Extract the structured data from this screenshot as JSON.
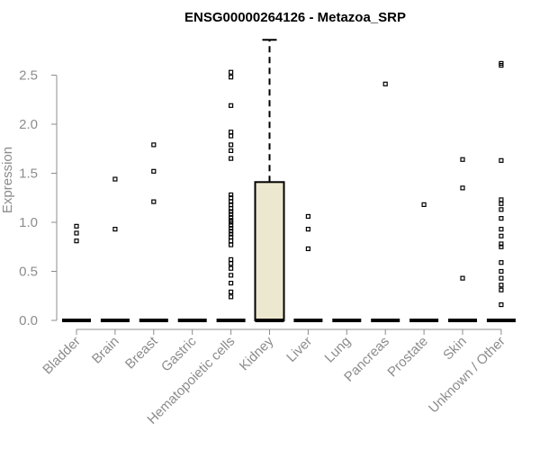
{
  "chart_data": {
    "type": "box",
    "title": "ENSG00000264126 - Metazoa_SRP",
    "xlabel": "",
    "ylabel": "Expression",
    "ylim": [
      0,
      2.9
    ],
    "yticks": [
      "0.0",
      "0.5",
      "1.0",
      "1.5",
      "2.0",
      "2.5"
    ],
    "box_fill": "#ece7cf",
    "categories": [
      "Bladder",
      "Brain",
      "Breast",
      "Gastric",
      "Hematopoietic cells",
      "Kidney",
      "Liver",
      "Lung",
      "Pancreas",
      "Prostate",
      "Skin",
      "Unknown / Other"
    ],
    "boxes": [
      {
        "category": "Bladder",
        "q1": 0,
        "median": 0,
        "q3": 0,
        "whisker_low": 0,
        "whisker_high": 0,
        "outliers": [
          0.81,
          0.89,
          0.96
        ]
      },
      {
        "category": "Brain",
        "q1": 0,
        "median": 0,
        "q3": 0,
        "whisker_low": 0,
        "whisker_high": 0,
        "outliers": [
          0.93,
          1.44
        ]
      },
      {
        "category": "Breast",
        "q1": 0,
        "median": 0,
        "q3": 0,
        "whisker_low": 0,
        "whisker_high": 0,
        "outliers": [
          1.21,
          1.52,
          1.79
        ]
      },
      {
        "category": "Gastric",
        "q1": 0,
        "median": 0,
        "q3": 0,
        "whisker_low": 0,
        "whisker_high": 0,
        "outliers": []
      },
      {
        "category": "Hematopoietic cells",
        "q1": 0,
        "median": 0,
        "q3": 0,
        "whisker_low": 0,
        "whisker_high": 0,
        "outliers": [
          0.24,
          0.29,
          0.38,
          0.46,
          0.53,
          0.58,
          0.62,
          0.77,
          0.81,
          0.85,
          0.88,
          0.91,
          0.94,
          0.97,
          1.0,
          1.02,
          1.05,
          1.08,
          1.11,
          1.14,
          1.18,
          1.21,
          1.25,
          1.28,
          1.65,
          1.73,
          1.79,
          1.88,
          1.92,
          2.19,
          2.48,
          2.53
        ]
      },
      {
        "category": "Kidney",
        "q1": 0,
        "median": 0,
        "q3": 1.41,
        "whisker_low": 0,
        "whisker_high": 2.86,
        "outliers": []
      },
      {
        "category": "Liver",
        "q1": 0,
        "median": 0,
        "q3": 0,
        "whisker_low": 0,
        "whisker_high": 0,
        "outliers": [
          0.73,
          0.93,
          1.06
        ]
      },
      {
        "category": "Lung",
        "q1": 0,
        "median": 0,
        "q3": 0,
        "whisker_low": 0,
        "whisker_high": 0,
        "outliers": []
      },
      {
        "category": "Pancreas",
        "q1": 0,
        "median": 0,
        "q3": 0,
        "whisker_low": 0,
        "whisker_high": 0,
        "outliers": [
          2.41
        ]
      },
      {
        "category": "Prostate",
        "q1": 0,
        "median": 0,
        "q3": 0,
        "whisker_low": 0,
        "whisker_high": 0,
        "outliers": [
          1.18
        ]
      },
      {
        "category": "Skin",
        "q1": 0,
        "median": 0,
        "q3": 0,
        "whisker_low": 0,
        "whisker_high": 0,
        "outliers": [
          0.43,
          1.35,
          1.64
        ]
      },
      {
        "category": "Unknown / Other",
        "q1": 0,
        "median": 0,
        "q3": 0,
        "whisker_low": 0,
        "whisker_high": 0,
        "outliers": [
          0.16,
          0.31,
          0.36,
          0.43,
          0.5,
          0.59,
          0.75,
          0.78,
          0.86,
          0.93,
          1.04,
          1.13,
          1.19,
          1.23,
          1.63,
          2.6,
          2.62
        ]
      }
    ]
  }
}
